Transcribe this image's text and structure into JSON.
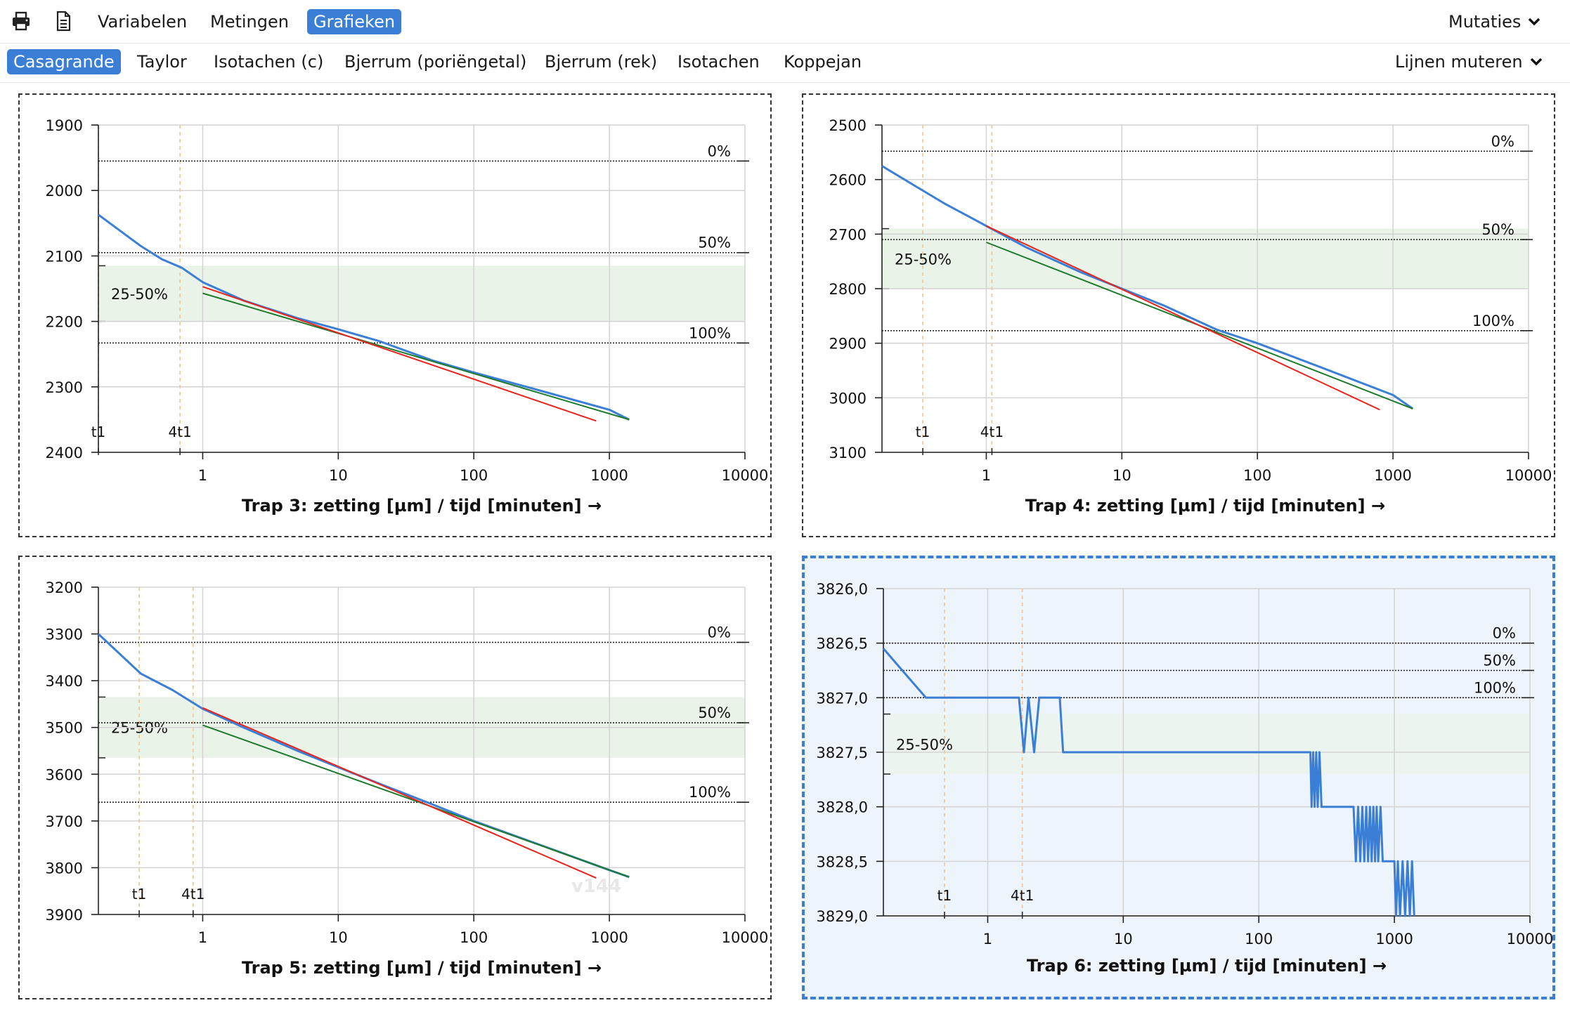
{
  "toolbar": {
    "tabs": [
      "Variabelen",
      "Metingen",
      "Grafieken"
    ],
    "active_tab": 2,
    "mutations_label": "Mutaties",
    "icons": [
      "print-icon",
      "document-icon"
    ]
  },
  "subnav": {
    "tabs": [
      "Casagrande",
      "Taylor",
      "Isotachen (c)",
      "Bjerrum (poriëngetal)",
      "Bjerrum (rek)",
      "Isotachen",
      "Koppejan"
    ],
    "active_tab": 0,
    "lines_label": "Lijnen muteren"
  },
  "watermark": "v144",
  "colors": {
    "measured": "#3a7fd5",
    "fit_red": "#e8241e",
    "fit_green": "#1e7a2c",
    "band": "#e9f3e8",
    "marker": "#f5c89a",
    "selected_border": "#3a7fd5"
  },
  "chart_data": [
    {
      "type": "line",
      "title": "Trap 3: zetting [µm] / tijd [minuten] →",
      "x_scale": "log",
      "xlim": [
        0.17,
        10000
      ],
      "x_ticks": [
        1,
        10,
        100,
        1000,
        10000
      ],
      "x_tick_labels": [
        "1",
        "10",
        "100",
        "1000",
        "10000"
      ],
      "ylim": [
        1900,
        2400
      ],
      "y_inverted": true,
      "y_ticks": [
        1900,
        2000,
        2100,
        2200,
        2300,
        2400
      ],
      "y_tick_labels": [
        "1900",
        "2000",
        "2100",
        "2200",
        "2300",
        "2400"
      ],
      "grid": true,
      "band": {
        "label": "25-50%",
        "y": [
          2115,
          2200
        ]
      },
      "levels": [
        {
          "label": "0%",
          "y": 1955
        },
        {
          "label": "50%",
          "y": 2095
        },
        {
          "label": "100%",
          "y": 2233
        }
      ],
      "markers": [
        {
          "label": "t1",
          "x": 0.17
        },
        {
          "label": "4t1",
          "x": 0.68
        }
      ],
      "series": [
        {
          "color": "#3a7fd5",
          "width": 3,
          "x": [
            0.17,
            0.35,
            0.5,
            0.7,
            1,
            2,
            5,
            10,
            20,
            50,
            100,
            300,
            1000,
            1400
          ],
          "y": [
            2037,
            2085,
            2105,
            2118,
            2140,
            2168,
            2195,
            2212,
            2230,
            2260,
            2278,
            2305,
            2335,
            2350
          ]
        },
        {
          "color": "#1e7a2c",
          "width": 2,
          "x": [
            1,
            1400
          ],
          "y": [
            2157,
            2350
          ]
        },
        {
          "color": "#e8241e",
          "width": 2,
          "x": [
            1,
            800
          ],
          "y": [
            2147,
            2352
          ]
        }
      ]
    },
    {
      "type": "line",
      "title": "Trap 4: zetting [µm] / tijd [minuten] →",
      "x_scale": "log",
      "xlim": [
        0.17,
        10000
      ],
      "x_ticks": [
        1,
        10,
        100,
        1000,
        10000
      ],
      "x_tick_labels": [
        "1",
        "10",
        "100",
        "1000",
        "10000"
      ],
      "ylim": [
        2500,
        3100
      ],
      "y_inverted": true,
      "y_ticks": [
        2500,
        2600,
        2700,
        2800,
        2900,
        3000,
        3100
      ],
      "y_tick_labels": [
        "2500",
        "2600",
        "2700",
        "2800",
        "2900",
        "3000",
        "3100"
      ],
      "grid": true,
      "band": {
        "label": "25-50%",
        "y": [
          2690,
          2800
        ]
      },
      "levels": [
        {
          "label": "0%",
          "y": 2548
        },
        {
          "label": "50%",
          "y": 2710
        },
        {
          "label": "100%",
          "y": 2877
        }
      ],
      "markers": [
        {
          "label": "t1",
          "x": 0.34
        },
        {
          "label": "4t1",
          "x": 1.1
        }
      ],
      "series": [
        {
          "color": "#3a7fd5",
          "width": 3,
          "x": [
            0.17,
            0.3,
            0.5,
            0.8,
            1,
            2,
            5,
            10,
            20,
            50,
            100,
            300,
            1000,
            1400
          ],
          "y": [
            2575,
            2612,
            2645,
            2672,
            2685,
            2725,
            2770,
            2800,
            2830,
            2875,
            2900,
            2945,
            2995,
            3020
          ]
        },
        {
          "color": "#1e7a2c",
          "width": 2,
          "x": [
            1,
            1400
          ],
          "y": [
            2715,
            3020
          ]
        },
        {
          "color": "#e8241e",
          "width": 2,
          "x": [
            1,
            800
          ],
          "y": [
            2685,
            3022
          ]
        }
      ]
    },
    {
      "type": "line",
      "title": "Trap 5: zetting [µm] / tijd [minuten] →",
      "x_scale": "log",
      "xlim": [
        0.17,
        10000
      ],
      "x_ticks": [
        1,
        10,
        100,
        1000,
        10000
      ],
      "x_tick_labels": [
        "1",
        "10",
        "100",
        "1000",
        "10000"
      ],
      "ylim": [
        3200,
        3900
      ],
      "y_inverted": true,
      "y_ticks": [
        3200,
        3300,
        3400,
        3500,
        3600,
        3700,
        3800,
        3900
      ],
      "y_tick_labels": [
        "3200",
        "3300",
        "3400",
        "3500",
        "3600",
        "3700",
        "3800",
        "3900"
      ],
      "grid": true,
      "band": {
        "label": "25-50%",
        "y": [
          3435,
          3565
        ]
      },
      "levels": [
        {
          "label": "0%",
          "y": 3318
        },
        {
          "label": "50%",
          "y": 3490
        },
        {
          "label": "100%",
          "y": 3660
        }
      ],
      "markers": [
        {
          "label": "t1",
          "x": 0.34
        },
        {
          "label": "4t1",
          "x": 0.85
        }
      ],
      "series": [
        {
          "color": "#3a7fd5",
          "width": 3,
          "x": [
            0.17,
            0.35,
            0.6,
            1,
            2,
            5,
            10,
            20,
            50,
            100,
            300,
            1000,
            1400
          ],
          "y": [
            3300,
            3385,
            3420,
            3460,
            3500,
            3550,
            3585,
            3620,
            3665,
            3700,
            3750,
            3805,
            3820
          ]
        },
        {
          "color": "#1e7a2c",
          "width": 2,
          "x": [
            1,
            1400
          ],
          "y": [
            3495,
            3820
          ]
        },
        {
          "color": "#e8241e",
          "width": 2,
          "x": [
            1,
            800
          ],
          "y": [
            3458,
            3822
          ]
        }
      ]
    },
    {
      "type": "line",
      "title": "Trap 6: zetting [µm] / tijd [minuten] →",
      "x_scale": "log",
      "xlim": [
        0.17,
        10000
      ],
      "x_ticks": [
        1,
        10,
        100,
        1000,
        10000
      ],
      "x_tick_labels": [
        "1",
        "10",
        "100",
        "1000",
        "10000"
      ],
      "ylim": [
        3826.0,
        3829.0
      ],
      "y_inverted": true,
      "y_ticks": [
        3826.0,
        3826.5,
        3827.0,
        3827.5,
        3828.0,
        3828.5,
        3829.0
      ],
      "y_tick_labels": [
        "3826,0",
        "3826,5",
        "3827,0",
        "3827,5",
        "3828,0",
        "3828,5",
        "3829,0"
      ],
      "grid": true,
      "band": {
        "label": "25-50%",
        "y": [
          3827.15,
          3827.7
        ]
      },
      "levels": [
        {
          "label": "0%",
          "y": 3826.5
        },
        {
          "label": "50%",
          "y": 3826.75
        },
        {
          "label": "100%",
          "y": 3827.0
        }
      ],
      "markers": [
        {
          "label": "t1",
          "x": 0.48
        },
        {
          "label": "4t1",
          "x": 1.8
        }
      ],
      "series": [
        {
          "color": "#3a7fd5",
          "width": 3,
          "x": [
            0.17,
            0.35,
            1.7,
            1.85,
            2.0,
            2.2,
            2.4,
            2.6,
            3.4,
            3.6,
            240,
            245,
            252,
            258,
            265,
            272,
            280,
            290,
            300,
            500,
            520,
            540,
            560,
            580,
            600,
            620,
            640,
            660,
            680,
            700,
            720,
            740,
            760,
            790,
            820,
            850,
            1000,
            1030,
            1060,
            1100,
            1150,
            1200,
            1250,
            1300,
            1350,
            1400
          ],
          "y": [
            3826.55,
            3827.0,
            3827.0,
            3827.5,
            3827.0,
            3827.5,
            3827.0,
            3827.0,
            3827.0,
            3827.5,
            3827.5,
            3828.0,
            3827.5,
            3828.0,
            3827.5,
            3828.0,
            3827.5,
            3828.0,
            3828.0,
            3828.0,
            3828.5,
            3828.0,
            3828.5,
            3828.0,
            3828.5,
            3828.0,
            3828.5,
            3828.0,
            3828.5,
            3828.0,
            3828.5,
            3828.0,
            3828.5,
            3828.0,
            3828.5,
            3828.5,
            3828.5,
            3829.0,
            3828.5,
            3829.0,
            3828.5,
            3829.0,
            3828.5,
            3829.0,
            3828.5,
            3829.0
          ]
        }
      ]
    }
  ]
}
